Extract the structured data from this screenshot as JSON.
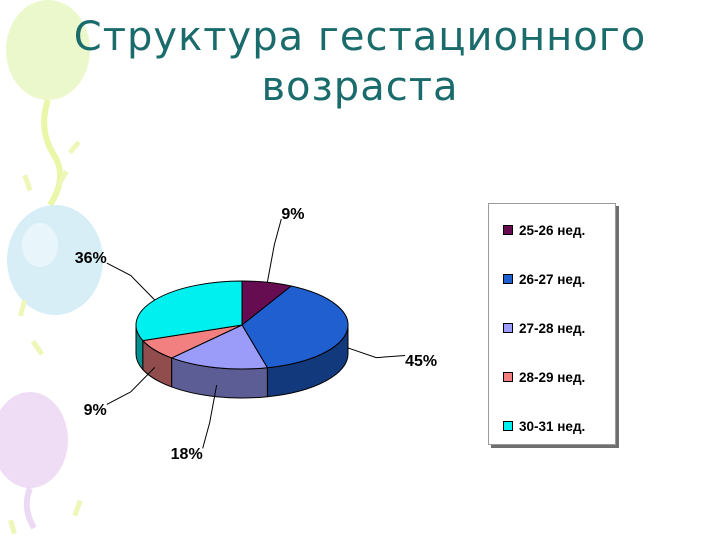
{
  "title": {
    "line1": "Структура гестационного",
    "line2": "возраста"
  },
  "chart_data": {
    "type": "pie",
    "categories": [
      "25-26 нед.",
      "26-27 нед.",
      "27-28 нед.",
      "28-29 нед.",
      "30-31 нед."
    ],
    "values": [
      9,
      45,
      18,
      9,
      36
    ],
    "data_labels": [
      "9%",
      "45%",
      "18%",
      "9%",
      "36%"
    ],
    "colors": [
      "#660d52",
      "#1f5fd0",
      "#9b9bfa",
      "#f28080",
      "#00f0f0"
    ],
    "style": "3d",
    "legend_placement": "right"
  }
}
